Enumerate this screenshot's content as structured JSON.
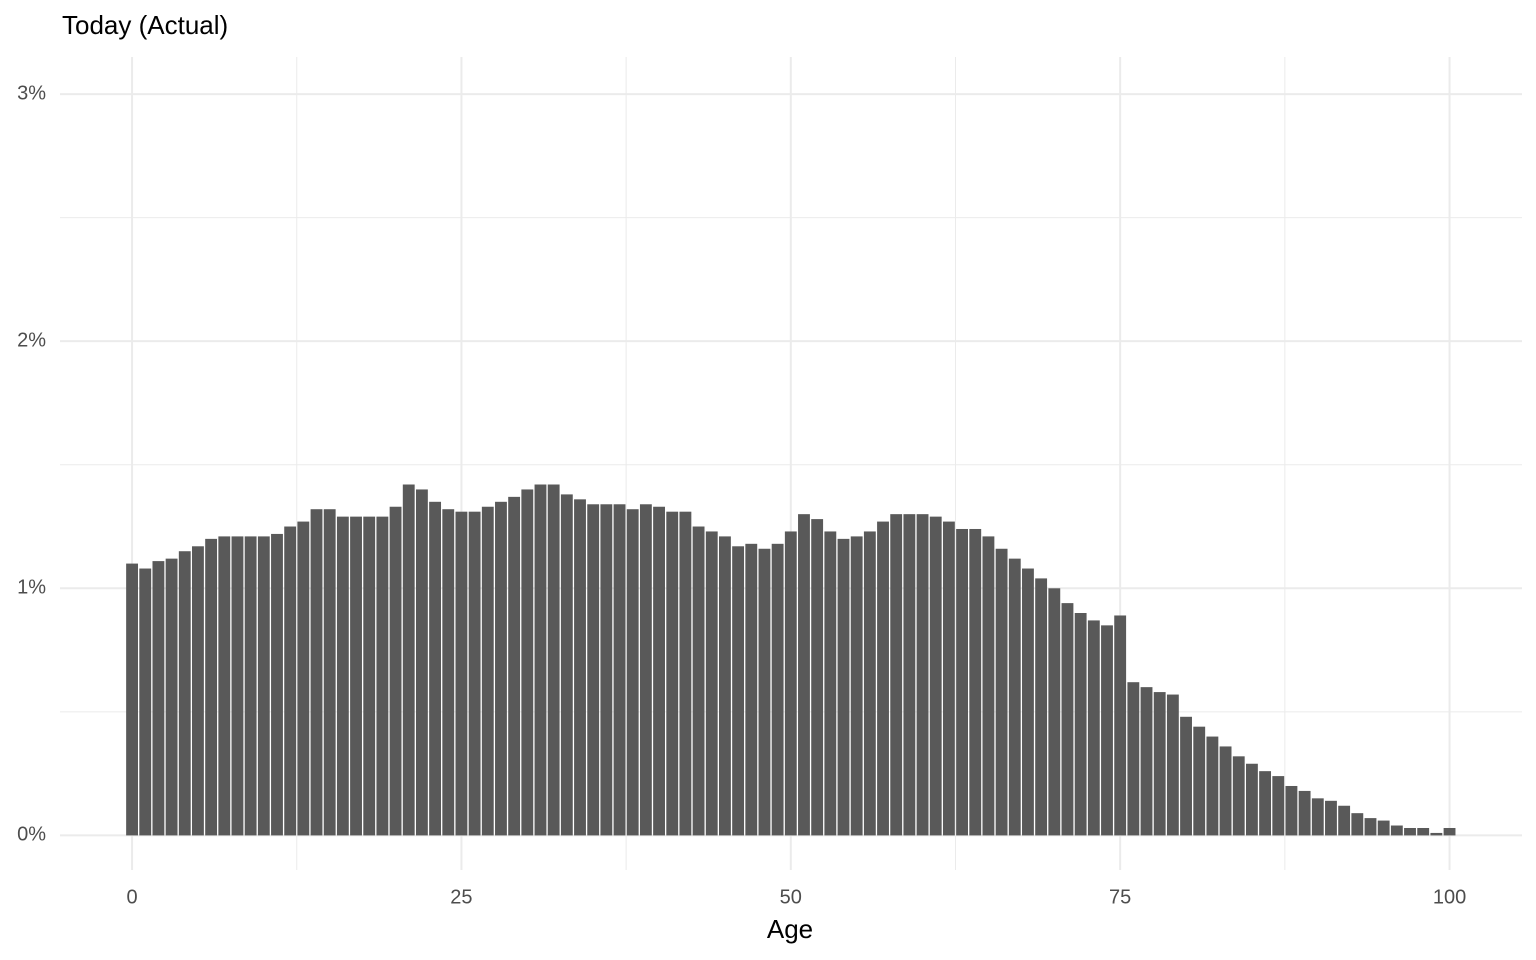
{
  "chart_data": {
    "type": "bar",
    "title": "Today (Actual)",
    "x_label": "Age",
    "x": [
      0,
      1,
      2,
      3,
      4,
      5,
      6,
      7,
      8,
      9,
      10,
      11,
      12,
      13,
      14,
      15,
      16,
      17,
      18,
      19,
      20,
      21,
      22,
      23,
      24,
      25,
      26,
      27,
      28,
      29,
      30,
      31,
      32,
      33,
      34,
      35,
      36,
      37,
      38,
      39,
      40,
      41,
      42,
      43,
      44,
      45,
      46,
      47,
      48,
      49,
      50,
      51,
      52,
      53,
      54,
      55,
      56,
      57,
      58,
      59,
      60,
      61,
      62,
      63,
      64,
      65,
      66,
      67,
      68,
      69,
      70,
      71,
      72,
      73,
      74,
      75,
      76,
      77,
      78,
      79,
      80,
      81,
      82,
      83,
      84,
      85,
      86,
      87,
      88,
      89,
      90,
      91,
      92,
      93,
      94,
      95,
      96,
      97,
      98,
      99,
      100
    ],
    "values": [
      1.1,
      1.08,
      1.11,
      1.12,
      1.15,
      1.17,
      1.2,
      1.21,
      1.21,
      1.21,
      1.21,
      1.22,
      1.25,
      1.27,
      1.32,
      1.32,
      1.29,
      1.29,
      1.29,
      1.29,
      1.33,
      1.42,
      1.4,
      1.35,
      1.32,
      1.31,
      1.31,
      1.33,
      1.35,
      1.37,
      1.4,
      1.42,
      1.42,
      1.38,
      1.36,
      1.34,
      1.34,
      1.34,
      1.32,
      1.34,
      1.33,
      1.31,
      1.31,
      1.25,
      1.23,
      1.21,
      1.17,
      1.18,
      1.16,
      1.18,
      1.23,
      1.3,
      1.28,
      1.23,
      1.2,
      1.21,
      1.23,
      1.27,
      1.3,
      1.3,
      1.3,
      1.29,
      1.27,
      1.24,
      1.24,
      1.21,
      1.16,
      1.12,
      1.08,
      1.04,
      1.0,
      0.94,
      0.9,
      0.87,
      0.85,
      0.89,
      0.62,
      0.6,
      0.58,
      0.57,
      0.48,
      0.44,
      0.4,
      0.36,
      0.32,
      0.29,
      0.26,
      0.24,
      0.2,
      0.18,
      0.15,
      0.14,
      0.12,
      0.09,
      0.07,
      0.06,
      0.04,
      0.03,
      0.03,
      0.01,
      0.03
    ],
    "color": "#595959",
    "xlim": [
      -5.47,
      105.5
    ],
    "xticks": [
      0,
      25,
      50,
      75,
      100
    ],
    "xminor": [
      12.5,
      37.5,
      62.5,
      87.5
    ],
    "ylim": [
      -0.14,
      3.15
    ],
    "yticks": [
      {
        "value": 0,
        "label": "0%"
      },
      {
        "value": 1,
        "label": "1%"
      },
      {
        "value": 2,
        "label": "2%"
      },
      {
        "value": 3,
        "label": "3%"
      }
    ],
    "yminor": [
      0.5,
      1.5,
      2.5
    ],
    "grid": true
  }
}
